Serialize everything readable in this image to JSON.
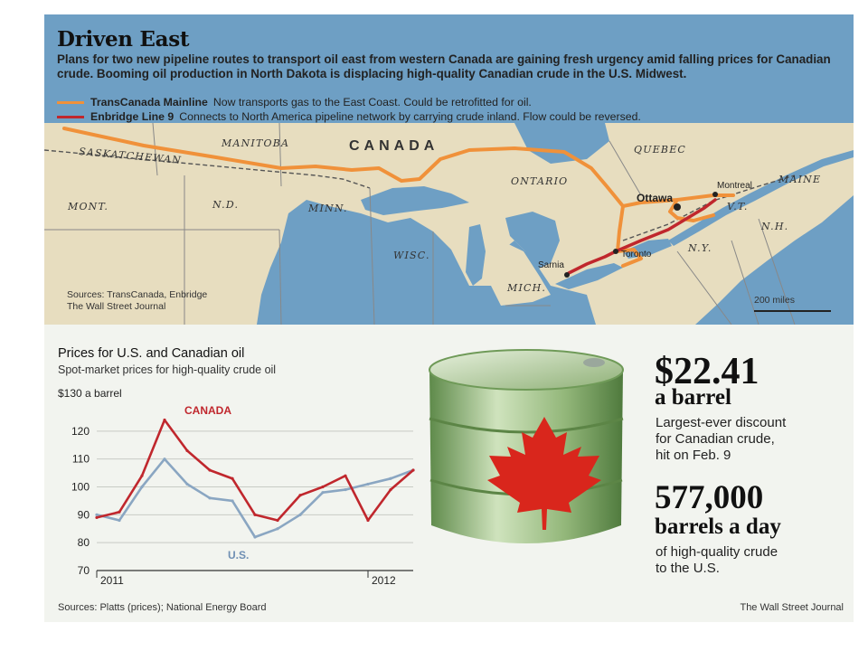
{
  "map": {
    "title": "Driven East",
    "intro": "Plans for two new pipeline routes to transport oil east from western Canada are gaining fresh urgency amid falling prices for Canadian crude. Booming oil production in North Dakota is displacing high-quality Canadian crude in the U.S. Midwest.",
    "legend": [
      {
        "name": "TransCanada Mainline",
        "desc": "Now transports gas to the East Coast. Could be retrofitted for oil.",
        "color": "#f0913a"
      },
      {
        "name": "Enbridge Line 9",
        "desc": "Connects to North America pipeline network by carrying crude inland. Flow could be reversed.",
        "color": "#c0272d"
      }
    ],
    "country_label": "CANADA",
    "region_labels": {
      "saskatchewan": "SASKATCHEWAN",
      "manitoba": "MANITOBA",
      "ontario": "ONTARIO",
      "quebec": "QUEBEC",
      "maine": "MAINE",
      "mont": "MONT.",
      "nd": "N.D.",
      "minn": "MINN.",
      "wisc": "WISC.",
      "mich": "MICH.",
      "ny": "N.Y.",
      "vt": "V.T.",
      "nh": "N.H."
    },
    "cities": {
      "ottawa": "Ottawa",
      "montreal": "Montreal",
      "toronto": "Toronto",
      "sarnia": "Sarnia"
    },
    "sources_line1": "Sources: TransCanada, Enbridge",
    "sources_line2": "The Wall Street Journal",
    "scale": "200 miles",
    "colors": {
      "land": "#e7ddbf",
      "water": "#6e9fc4",
      "border": "#6b6b6b"
    }
  },
  "chart": {
    "title": "Prices for U.S. and Canadian oil",
    "subtitle": "Spot-market prices for high-quality crude oil",
    "unit_label": "$130 a barrel",
    "sources": "Sources: Platts (prices); National Energy Board"
  },
  "chart_data": {
    "type": "line",
    "title": "Prices for U.S. and Canadian oil",
    "subtitle": "Spot-market prices for high-quality crude oil",
    "ylabel": "$130 a barrel",
    "ylim": [
      70,
      130
    ],
    "yticks": [
      "70",
      "80",
      "90",
      "100",
      "110",
      "120"
    ],
    "x_ticks": [
      "2011",
      "2012"
    ],
    "x": [
      "2011-01",
      "2011-02",
      "2011-03",
      "2011-04",
      "2011-05",
      "2011-06",
      "2011-07",
      "2011-08",
      "2011-09",
      "2011-10",
      "2011-11",
      "2011-12",
      "2012-01",
      "2012-02",
      "2012-03"
    ],
    "series": [
      {
        "name": "CANADA",
        "color": "#c0272d",
        "values": [
          89,
          91,
          104,
          124,
          113,
          106,
          103,
          90,
          88,
          97,
          100,
          104,
          88,
          99,
          106
        ]
      },
      {
        "name": "U.S.",
        "color": "#8aa6c2",
        "values": [
          90,
          88,
          100,
          110,
          101,
          96,
          95,
          82,
          85,
          90,
          98,
          99,
          101,
          103,
          106
        ]
      }
    ]
  },
  "stats": {
    "price": "$22.41",
    "price_unit": "a barrel",
    "price_desc_1": "Largest-ever discount",
    "price_desc_2": "for Canadian crude,",
    "price_desc_3": "hit on Feb. 9",
    "volume": "577,000",
    "volume_unit": "barrels a day",
    "volume_desc_1": "of high-quality crude",
    "volume_desc_2": "to the U.S."
  },
  "credit": "The Wall Street Journal"
}
